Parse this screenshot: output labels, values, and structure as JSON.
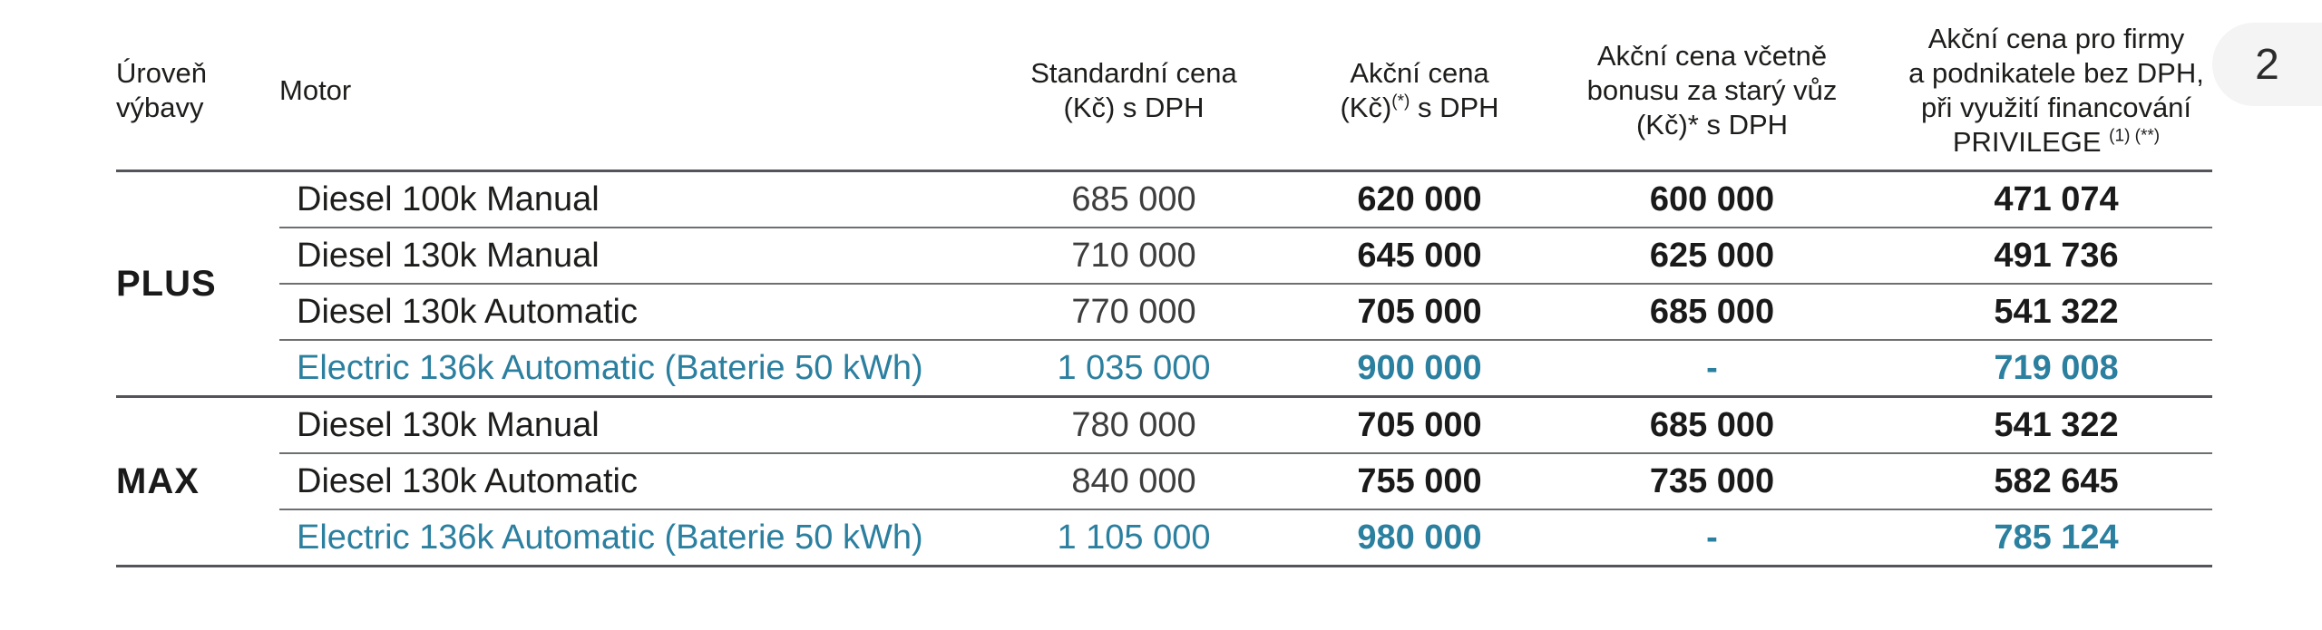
{
  "page": {
    "badge": "2"
  },
  "colors": {
    "accent_teal": "#2b7f9f",
    "text_dark": "#1d1d1b",
    "standard_price_gray": "#3d3d3d",
    "rule_line": "#54555a",
    "badge_background": "#f4f4f5"
  },
  "table": {
    "headers": {
      "trim": {
        "line1": "Úroveň",
        "line2": "výbavy"
      },
      "motor": "Motor",
      "standard": {
        "line1": "Standardní cena",
        "line2": "(Kč) s DPH"
      },
      "promo": {
        "line1": "Akční cena",
        "line2_pre": "(Kč)",
        "line2_sup": "(*)",
        "line2_post": " s DPH"
      },
      "bonus": {
        "line1": "Akční cena včetně",
        "line2": "bonusu za starý vůz",
        "line3": "(Kč)* s DPH"
      },
      "business": {
        "line1": "Akční cena pro firmy",
        "line2": "a podnikatele bez DPH,",
        "line3": "při využití financování",
        "line4_pre": "PRIVILEGE",
        "line4_sup": "(1) (**)"
      }
    },
    "groups": [
      {
        "trim": "PLUS",
        "rows": [
          {
            "motor": "Diesel 100k Manual",
            "standard": "685 000",
            "promo": "620 000",
            "bonus": "600 000",
            "business": "471 074"
          },
          {
            "motor": "Diesel 130k Manual",
            "standard": "710 000",
            "promo": "645 000",
            "bonus": "625 000",
            "business": "491 736"
          },
          {
            "motor": "Diesel 130k Automatic",
            "standard": "770 000",
            "promo": "705 000",
            "bonus": "685 000",
            "business": "541 322"
          },
          {
            "motor": "Electric 136k Automatic (Baterie 50 kWh)",
            "standard": "1 035 000",
            "promo": "900 000",
            "bonus": "-",
            "business": "719 008"
          }
        ]
      },
      {
        "trim": "MAX",
        "rows": [
          {
            "motor": "Diesel 130k Manual",
            "standard": "780 000",
            "promo": "705 000",
            "bonus": "685 000",
            "business": "541 322"
          },
          {
            "motor": "Diesel 130k Automatic",
            "standard": "840 000",
            "promo": "755 000",
            "bonus": "735 000",
            "business": "582 645"
          },
          {
            "motor": "Electric 136k Automatic (Baterie 50 kWh)",
            "standard": "1 105 000",
            "promo": "980 000",
            "bonus": "-",
            "business": "785 124"
          }
        ]
      }
    ]
  }
}
